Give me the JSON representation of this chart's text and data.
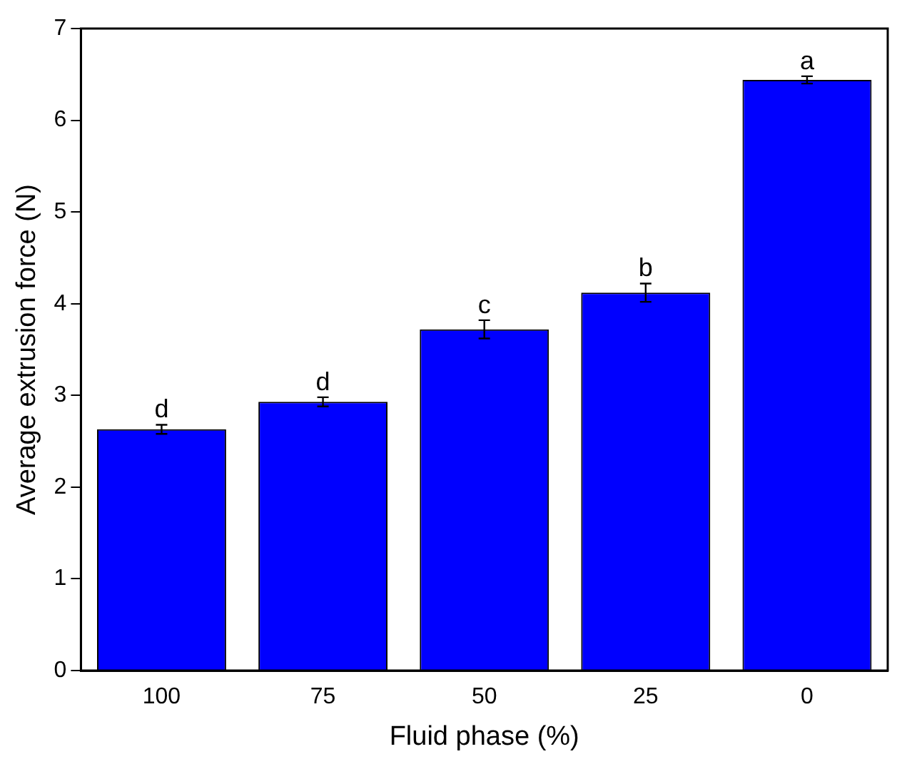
{
  "chart_data": {
    "type": "bar",
    "xlabel": "Fluid phase (%)",
    "ylabel": "Average extrusion force (N)",
    "categories": [
      "100",
      "75",
      "50",
      "25",
      "0"
    ],
    "values": [
      2.63,
      2.93,
      3.72,
      4.12,
      6.44
    ],
    "errors": [
      0.05,
      0.05,
      0.1,
      0.1,
      0.04
    ],
    "color": "#0000ff",
    "ylim": [
      0,
      7
    ],
    "yticks": [
      0,
      1,
      2,
      3,
      4,
      5,
      6,
      7
    ],
    "grid": false,
    "legend": false,
    "annotations": [
      {
        "text": "d",
        "x": "100",
        "y": 2.68
      },
      {
        "text": "d",
        "x": "75",
        "y": 2.98
      },
      {
        "text": "c",
        "x": "50",
        "y": 3.82
      },
      {
        "text": "b",
        "x": "25",
        "y": 4.22
      },
      {
        "text": "a",
        "x": "0",
        "y": 6.48
      }
    ]
  }
}
